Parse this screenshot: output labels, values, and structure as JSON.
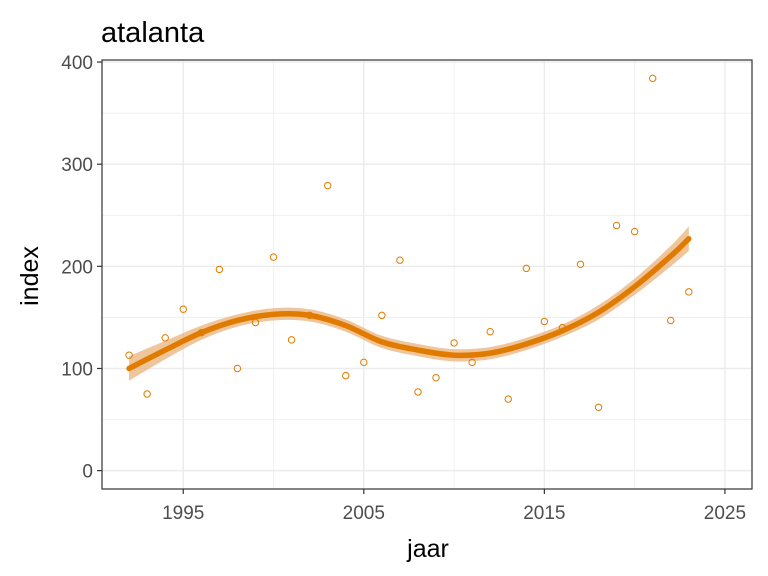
{
  "chart_data": {
    "type": "scatter",
    "title": "atalanta",
    "xlabel": "jaar",
    "ylabel": "index",
    "xlim": [
      1990.5,
      2026.5
    ],
    "ylim": [
      -18,
      402
    ],
    "x_ticks": [
      1995,
      2005,
      2015,
      2025
    ],
    "y_ticks": [
      0,
      100,
      200,
      300,
      400
    ],
    "grid": true,
    "colors": {
      "accent": "#e07b00",
      "band": "#eab27a",
      "grid": "#ebebeb",
      "panel_border": "#333333"
    },
    "points": {
      "x": [
        1992,
        1993,
        1994,
        1995,
        1996,
        1997,
        1998,
        1999,
        2000,
        2001,
        2002,
        2003,
        2004,
        2005,
        2006,
        2007,
        2008,
        2009,
        2010,
        2011,
        2012,
        2013,
        2014,
        2015,
        2016,
        2017,
        2018,
        2019,
        2020,
        2021,
        2022,
        2023
      ],
      "y": [
        113,
        75,
        130,
        158,
        135,
        197,
        100,
        145,
        209,
        128,
        152,
        279,
        93,
        106,
        152,
        206,
        77,
        91,
        125,
        106,
        136,
        70,
        198,
        146,
        140,
        202,
        62,
        240,
        234,
        384,
        147,
        175
      ]
    },
    "smooth": {
      "x": [
        1992,
        1994,
        1996,
        1998,
        2000,
        2002,
        2004,
        2006,
        2008,
        2010,
        2012,
        2014,
        2016,
        2018,
        2020,
        2022,
        2023
      ],
      "y": [
        100,
        118,
        135,
        147,
        153,
        152,
        142,
        126,
        118,
        113,
        115,
        124,
        137,
        155,
        180,
        210,
        227
      ],
      "band": [
        12,
        9,
        7,
        6,
        6,
        6,
        6,
        6,
        6,
        6,
        6,
        6,
        6,
        7,
        8,
        10,
        12
      ]
    }
  }
}
